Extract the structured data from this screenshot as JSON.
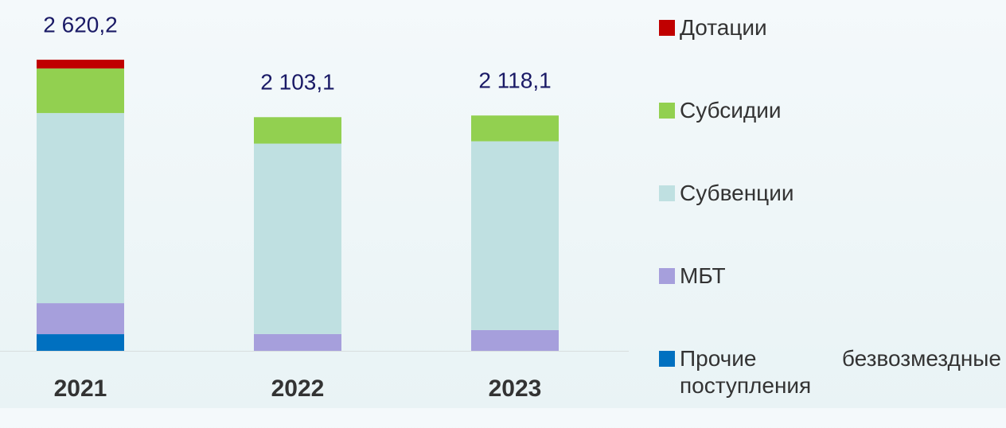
{
  "chart_data": {
    "type": "stacked-bar",
    "categories": [
      "2021",
      "2022",
      "2023"
    ],
    "series": [
      {
        "name": "Прочие безвозмездные поступления",
        "color": "#0070c0",
        "values": [
          150,
          0,
          0
        ]
      },
      {
        "name": "МБТ",
        "color": "#a69fdc",
        "values": [
          279,
          151,
          187
        ]
      },
      {
        "name": "Субвенции",
        "color": "#bfe0e1",
        "values": [
          1711,
          1714,
          1699
        ]
      },
      {
        "name": "Субсидии",
        "color": "#92d050",
        "values": [
          401,
          238,
          232
        ]
      },
      {
        "name": "Дотации",
        "color": "#c00000",
        "values": [
          79,
          0,
          0
        ]
      }
    ],
    "totals": [
      {
        "value": 2620.2,
        "label": "2 620,2"
      },
      {
        "value": 2103.1,
        "label": "2 103,1"
      },
      {
        "value": 2118.1,
        "label": "2 118,1"
      }
    ],
    "ylim": [
      0,
      3000
    ]
  }
}
